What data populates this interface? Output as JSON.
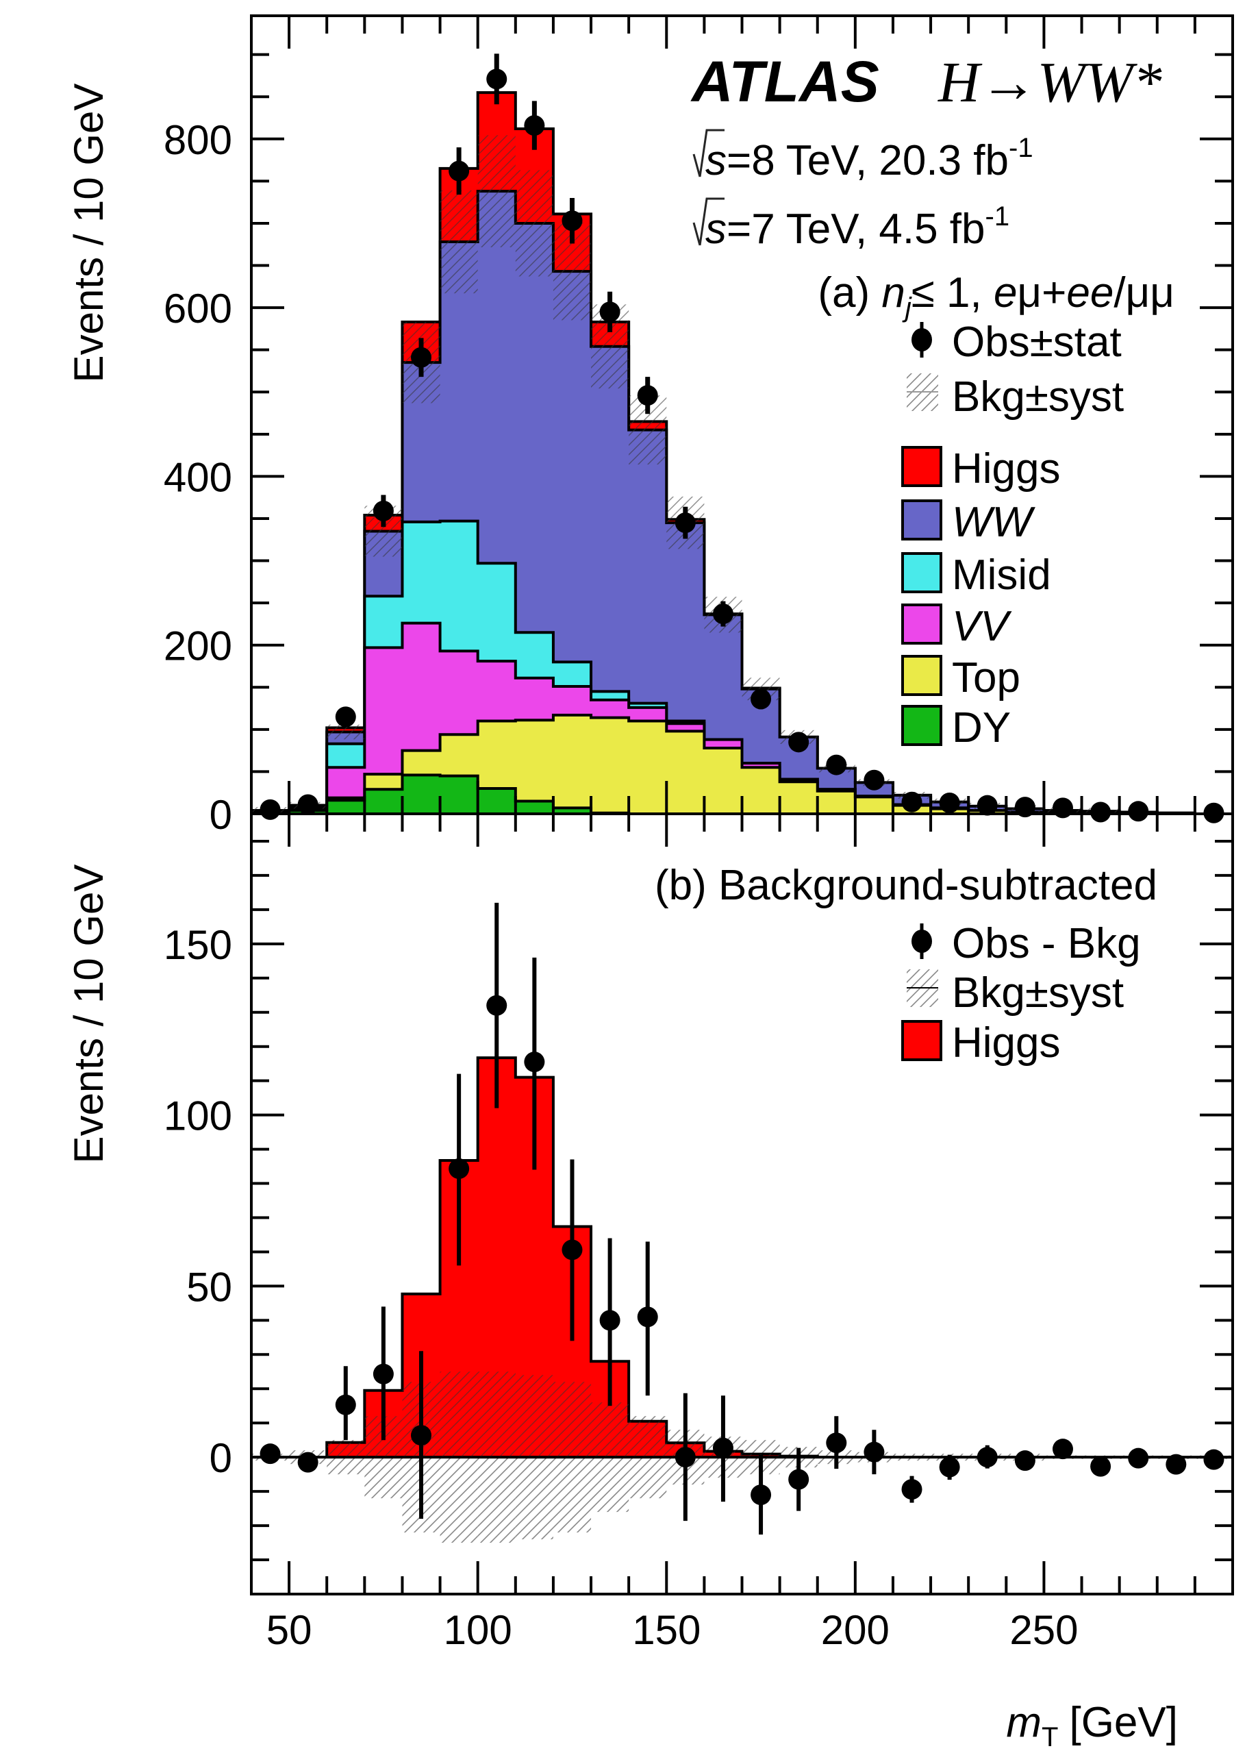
{
  "chart_data": {
    "type": "histogram-stack",
    "experiment_label": "ATLAS",
    "process_label": "H→WW*",
    "energy_labels": [
      "√s=8 TeV, 20.3 fb⁻¹",
      "√s=7 TeV, 4.5 fb⁻¹"
    ],
    "energy_lines": [
      {
        "sqrt": "√",
        "s": "s",
        "rest": "=8 TeV, 20.3 fb",
        "sup": "-1"
      },
      {
        "sqrt": "√",
        "s": "s",
        "rest": "=7 TeV, 4.5 fb",
        "sup": "-1"
      }
    ],
    "xlabel": "m",
    "xlabel_sub": "T",
    "xlabel_unit": "[GeV]",
    "xlim": [
      40,
      300
    ],
    "xticks": [
      50,
      100,
      150,
      200,
      250
    ],
    "bin_edges": [
      40,
      50,
      60,
      70,
      80,
      90,
      100,
      110,
      120,
      130,
      140,
      150,
      160,
      170,
      180,
      190,
      200,
      210,
      220,
      230,
      240,
      250,
      260,
      270,
      280,
      290,
      300
    ],
    "panels": [
      {
        "id": "a",
        "title_prefix": "(a) ",
        "title_n": "n",
        "title_sub": "j",
        "title_rest": "≤ 1, ",
        "title_e": "e",
        "title_mu": "μ+",
        "title_ee": "ee",
        "title_tail": "/μμ",
        "ylabel": "Events / 10 GeV",
        "ylim": [
          0,
          946
        ],
        "yticks": [
          0,
          200,
          400,
          600,
          800
        ],
        "legend": [
          {
            "label": "Obs±stat",
            "kind": "marker"
          },
          {
            "label": "Bkg±syst",
            "kind": "hatch"
          },
          {
            "label": "Higgs",
            "kind": "box",
            "color": "#ff0000"
          },
          {
            "label": "WW",
            "kind": "box",
            "color": "#6766c8",
            "italic": true
          },
          {
            "label": "Misid",
            "kind": "box",
            "color": "#49eaea"
          },
          {
            "label": "VV",
            "kind": "box",
            "color": "#ec47ea",
            "italic": true
          },
          {
            "label": "Top",
            "kind": "box",
            "color": "#eaea48"
          },
          {
            "label": "DY",
            "kind": "box",
            "color": "#13b716"
          }
        ],
        "stack_order": [
          "DY",
          "Top",
          "VV",
          "Misid",
          "WW",
          "Higgs"
        ],
        "stack_colors": {
          "DY": "#13b716",
          "Top": "#eaea48",
          "VV": "#ec47ea",
          "Misid": "#49eaea",
          "WW": "#6766c8",
          "Higgs": "#ff0000"
        },
        "series": [
          {
            "name": "DY",
            "values": [
              1,
              4,
              16,
              29,
              46,
              45,
              30,
              15,
              7,
              1,
              0,
              0,
              0,
              0,
              0,
              0,
              0,
              0,
              0,
              0,
              0,
              0,
              0,
              0,
              0,
              0
            ]
          },
          {
            "name": "Top",
            "values": [
              0,
              1,
              3,
              18,
              29,
              49,
              80,
              96,
              110,
              113,
              110,
              98,
              78,
              55,
              38,
              27,
              20,
              10,
              6,
              4,
              2,
              1,
              1,
              1,
              0,
              0
            ]
          },
          {
            "name": "VV",
            "values": [
              1,
              1,
              36,
              150,
              151,
              99,
              71,
              50,
              34,
              21,
              16,
              9,
              10,
              5,
              3,
              2,
              1,
              1,
              1,
              0,
              0,
              0,
              0,
              0,
              0,
              0
            ]
          },
          {
            "name": "Misid",
            "values": [
              1,
              2,
              28,
              61,
              120,
              154,
              116,
              54,
              29,
              10,
              5,
              3,
              0,
              0,
              0,
              0,
              0,
              0,
              0,
              0,
              0,
              0,
              0,
              0,
              0,
              0
            ]
          },
          {
            "name": "WW",
            "values": [
              1,
              2,
              14,
              77,
              189,
              331,
              441,
              485,
              463,
              409,
              324,
              235,
              148,
              88,
              50,
              25,
              16,
              11,
              7,
              5,
              4,
              3,
              2,
              1,
              1,
              0
            ]
          },
          {
            "name": "Higgs",
            "values": [
              0,
              0,
              5,
              19,
              48,
              87,
              117,
              112,
              68,
              29,
              10,
              4,
              1,
              1,
              0,
              0,
              0,
              0,
              0,
              0,
              0,
              0,
              0,
              0,
              0,
              0
            ]
          }
        ],
        "data_points": {
          "name": "Obs±stat",
          "x": [
            45,
            55,
            65,
            75,
            85,
            95,
            105,
            115,
            125,
            135,
            145,
            155,
            165,
            175,
            185,
            195,
            205,
            215,
            225,
            235,
            245,
            255,
            265,
            275,
            295
          ],
          "y": [
            5,
            11,
            115,
            359,
            541,
            762,
            871,
            816,
            703,
            595,
            496,
            345,
            237,
            136,
            85,
            58,
            40,
            14,
            13,
            10,
            8,
            7,
            2,
            3,
            1
          ],
          "yerr": [
            2,
            3,
            11,
            19,
            23,
            28,
            30,
            29,
            27,
            24,
            22,
            19,
            15,
            12,
            9,
            8,
            6,
            4,
            4,
            3,
            3,
            3,
            1,
            2,
            1
          ]
        }
      },
      {
        "id": "b",
        "title": "(b) Background-subtracted",
        "ylabel": "Events / 10 GeV",
        "ylim": [
          -40,
          188
        ],
        "yticks": [
          0,
          50,
          100,
          150
        ],
        "legend": [
          {
            "label": "Obs - Bkg",
            "kind": "marker"
          },
          {
            "label": "Bkg±syst",
            "kind": "hatch"
          },
          {
            "label": "Higgs",
            "kind": "box",
            "color": "#ff0000"
          }
        ],
        "series": [
          {
            "name": "Higgs",
            "values": [
              0,
              0,
              4.3,
              19.5,
              47.7,
              86.7,
              116.7,
              111,
              67.4,
              28,
              10.5,
              4.2,
              1.7,
              0.9,
              0.3,
              0,
              0,
              0,
              0,
              0,
              0,
              0,
              0,
              0,
              0,
              0
            ]
          }
        ],
        "bkg_syst_band": [
          1,
          2,
          5,
          12,
          22,
          25,
          25,
          24,
          22,
          16,
          12,
          8,
          6,
          5,
          3,
          2,
          1.5,
          1,
          1,
          1,
          1,
          0.5,
          0.5,
          0.5,
          0.5,
          0.5
        ],
        "data_points": {
          "name": "Obs - Bkg",
          "x": [
            45,
            55,
            65,
            75,
            85,
            95,
            105,
            115,
            125,
            135,
            145,
            155,
            165,
            175,
            185,
            195,
            205,
            215,
            225,
            235,
            245,
            255,
            265,
            275,
            285,
            295
          ],
          "y": [
            1,
            -1.5,
            15.3,
            24.3,
            6.4,
            84.3,
            132,
            115.5,
            60.6,
            40,
            41,
            0,
            2.7,
            -11,
            -6.5,
            4.2,
            1.5,
            -9.4,
            -2.9,
            0,
            -1,
            2.4,
            -2.7,
            -0.3,
            -2.1,
            -0.7
          ],
          "yerr_lo": [
            1,
            1.5,
            10.3,
            19.3,
            24.4,
            28.3,
            30,
            31.5,
            26.6,
            25,
            23,
            18.6,
            15.7,
            11.6,
            9.2,
            7.6,
            6.5,
            3.9,
            3.7,
            3.3,
            1,
            1,
            1,
            1,
            1,
            1
          ],
          "yerr_hi": [
            1,
            1.5,
            11.3,
            19.7,
            24.6,
            27.7,
            30,
            30.5,
            26.4,
            24,
            22,
            18.7,
            15.3,
            11.7,
            9.2,
            7.8,
            6.5,
            3.9,
            3.6,
            3.5,
            1,
            1,
            1,
            1,
            1,
            1
          ]
        }
      }
    ]
  }
}
